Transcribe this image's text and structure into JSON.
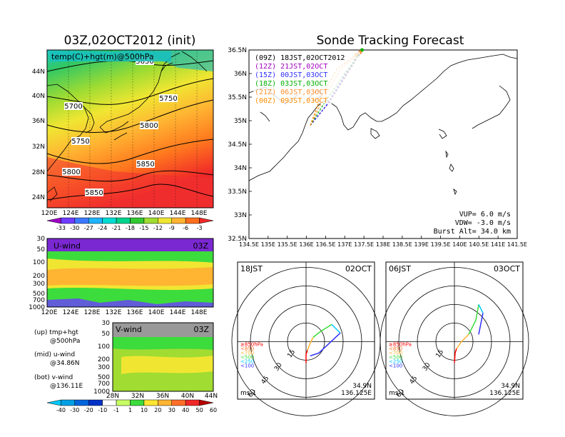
{
  "header": {
    "left_title": "03Z,02OCT2012 (init)",
    "right_title": "Sonde Tracking Forecast"
  },
  "panel_500": {
    "label": "temp(C)+hgt(m)@500hPa",
    "lon_ticks": [
      "120E",
      "124E",
      "128E",
      "132E",
      "136E",
      "140E",
      "144E",
      "148E"
    ],
    "lat_ticks": [
      "44N",
      "40N",
      "36N",
      "32N",
      "28N",
      "24N"
    ],
    "contour_labels": [
      "5650",
      "5700",
      "5750",
      "5750",
      "5800",
      "5800",
      "5850",
      "5850"
    ],
    "colorbar": [
      "-33",
      "-30",
      "-27",
      "-24",
      "-21",
      "-18",
      "-15",
      "-12",
      "-9",
      "-6",
      "-3"
    ]
  },
  "panel_u": {
    "label": "U-wind",
    "time": "03Z",
    "p_ticks": [
      "30",
      "50",
      "100",
      "200",
      "300",
      "500",
      "700",
      "1000"
    ],
    "lon_ticks": [
      "120E",
      "124E",
      "128E",
      "132E",
      "136E",
      "140E",
      "144E",
      "148E"
    ]
  },
  "panel_v": {
    "label": "V-wind",
    "time": "03Z",
    "p_ticks": [
      "30",
      "50",
      "100",
      "200",
      "300",
      "500",
      "700",
      "1000"
    ],
    "lat_ticks": [
      "28N",
      "32N",
      "36N",
      "40N",
      "44N"
    ]
  },
  "legend_notes": [
    {
      "line1": "(up) tmp+hgt",
      "line2": "@500hPa"
    },
    {
      "line1": "(mid) u-wind",
      "line2": "@34.86N"
    },
    {
      "line1": "(bot) v-wind",
      "line2": "@136.11E"
    }
  ],
  "wind_colorbar": [
    "-40",
    "-30",
    "-20",
    "-10",
    "-1",
    "1",
    "10",
    "20",
    "30",
    "40",
    "50",
    "60"
  ],
  "tracking_map": {
    "lon_ticks": [
      "134.5E",
      "135E",
      "135.5E",
      "136E",
      "136.5E",
      "137E",
      "137.5E",
      "138E",
      "138.5E",
      "139E",
      "139.5E",
      "140E",
      "140.5E",
      "141E",
      "141.5E"
    ],
    "lat_ticks": [
      "36.5N",
      "36N",
      "35.5N",
      "35N",
      "34.5N",
      "34N",
      "33.5N",
      "33N",
      "32.5N"
    ],
    "legend": [
      {
        "text": "(09Z)  18JST,02OCT2012",
        "color": "#000000"
      },
      {
        "text": "(12Z)  21JST,02OCT",
        "color": "#a000c0"
      },
      {
        "text": "(15Z)  00JST,03OCT",
        "color": "#3030ff"
      },
      {
        "text": "(18Z)  03JST,03OCT",
        "color": "#00b000"
      },
      {
        "text": "(21Z)  06JST,03OCT",
        "color": "#ff9030"
      },
      {
        "text": "(00Z)  09JST,03OCT",
        "color": "#ff8c00"
      }
    ],
    "params": [
      "VUP=  6.0  m/s",
      "VDW= -3.0  m/s",
      "Burst Alt=  34.0  km"
    ]
  },
  "hodo_left": {
    "time_label": "18JST",
    "date_label": "02OCT",
    "rings": [
      "15",
      "30",
      "45",
      "60"
    ],
    "levels": [
      "≥850hPa",
      "<850",
      "<700",
      "<500",
      "<250",
      "<100"
    ],
    "unit": "ms-1",
    "lat": "34.9N",
    "lon": "136.125E"
  },
  "hodo_right": {
    "time_label": "06JST",
    "date_label": "03OCT",
    "rings": [
      "15",
      "30",
      "45",
      "60"
    ],
    "levels": [
      "≥850hPa",
      "<850",
      "<700",
      "<500",
      "<250",
      "<100"
    ],
    "unit": "ms-1",
    "lat": "34.9N",
    "lon": "136.125E"
  },
  "chart_data": [
    {
      "type": "line",
      "title": "Sonde Tracking Forecast",
      "series": [
        {
          "name": "(09Z)  18JST,02OCT2012",
          "x": [
            136.1,
            136.6,
            137.3,
            137.35
          ],
          "y": [
            34.9,
            35.4,
            36.3,
            36.4
          ]
        },
        {
          "name": "(12Z)  21JST,02OCT",
          "x": [
            136.1,
            136.55,
            137.2,
            137.3
          ],
          "y": [
            34.9,
            35.35,
            36.2,
            36.4
          ]
        },
        {
          "name": "(15Z)  00JST,03OCT",
          "x": [
            136.1,
            136.5,
            137.1,
            137.4
          ],
          "y": [
            34.9,
            35.3,
            36.1,
            36.45
          ]
        },
        {
          "name": "(18Z)  03JST,03OCT",
          "x": [
            136.1,
            136.45,
            137.0,
            137.45
          ],
          "y": [
            34.9,
            35.35,
            36.0,
            36.5
          ]
        },
        {
          "name": "(21Z)  06JST,03OCT",
          "x": [
            136.1,
            136.4,
            136.9,
            137.4
          ],
          "y": [
            34.9,
            35.4,
            36.1,
            36.45
          ]
        },
        {
          "name": "(00Z)  09JST,03OCT",
          "x": [
            136.1,
            136.35,
            136.8,
            137.3
          ],
          "y": [
            34.9,
            35.45,
            36.1,
            36.4
          ]
        }
      ],
      "xlim": [
        134.5,
        141.5
      ],
      "ylim": [
        32.5,
        36.5
      ]
    }
  ],
  "colors": {
    "colorbar_temp": [
      "#a000c8",
      "#6e3cff",
      "#3c78ff",
      "#1eb4ff",
      "#00dcd2",
      "#00d28c",
      "#32c832",
      "#a0dc32",
      "#f0e632",
      "#ffb432",
      "#ff6e1e",
      "#f02828"
    ],
    "colorbar_wind": [
      "#00c8ff",
      "#00a0e6",
      "#0064dc",
      "#0032c8",
      "#ffffff",
      "#c8ff64",
      "#3cdc3c",
      "#ffe632",
      "#ffb432",
      "#ff6e28",
      "#f02828",
      "#b40000"
    ]
  }
}
